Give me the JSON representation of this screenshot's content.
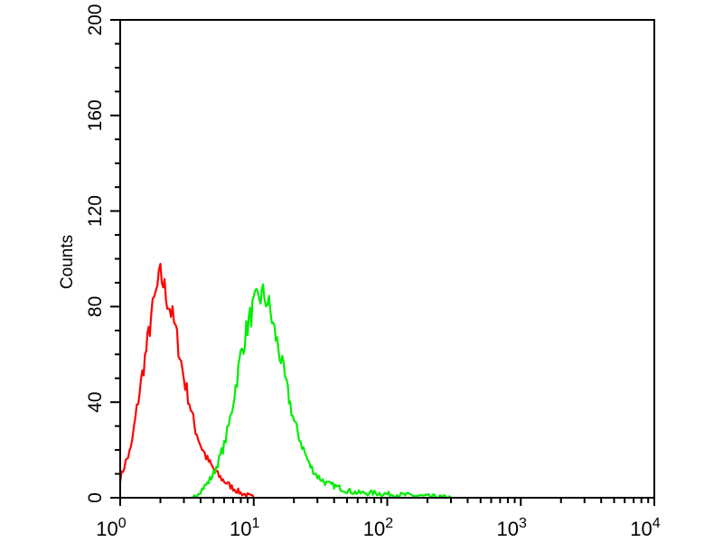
{
  "chart_data": {
    "type": "line",
    "title": "",
    "xlabel": "",
    "ylabel": "Counts",
    "xscale": "log",
    "xlim": [
      1,
      10000
    ],
    "ylim": [
      0,
      200
    ],
    "grid": false,
    "x_ticks": [
      {
        "base": "10",
        "exp": "0"
      },
      {
        "base": "10",
        "exp": "1"
      },
      {
        "base": "10",
        "exp": "2"
      },
      {
        "base": "10",
        "exp": "3"
      },
      {
        "base": "10",
        "exp": "4"
      }
    ],
    "y_ticks": [
      "0",
      "40",
      "80",
      "120",
      "160",
      "200"
    ],
    "series": [
      {
        "color": "#ff0000",
        "x": [
          1.0,
          1.1,
          1.2,
          1.3,
          1.4,
          1.5,
          1.6,
          1.7,
          1.8,
          1.9,
          2.0,
          2.1,
          2.2,
          2.4,
          2.6,
          2.8,
          3.0,
          3.3,
          3.6,
          4.0,
          4.5,
          5.0,
          5.5,
          6.0,
          7.0,
          8.0,
          9.0,
          10.0
        ],
        "y": [
          8,
          15,
          20,
          33,
          45,
          55,
          65,
          75,
          82,
          88,
          93,
          90,
          85,
          78,
          70,
          60,
          50,
          40,
          30,
          22,
          16,
          12,
          9,
          7,
          4,
          2,
          1,
          0
        ]
      },
      {
        "color": "#00ee00",
        "x": [
          3.5,
          4,
          4.5,
          5,
          5.5,
          6,
          6.5,
          7,
          7.5,
          8,
          9,
          10,
          11,
          12,
          13,
          14,
          16,
          18,
          20,
          23,
          26,
          30,
          35,
          40,
          50,
          60,
          80,
          100,
          150,
          200,
          300
        ],
        "y": [
          0,
          3,
          6,
          10,
          16,
          22,
          30,
          40,
          50,
          60,
          72,
          80,
          84,
          85,
          80,
          72,
          58,
          44,
          32,
          22,
          14,
          9,
          6,
          5,
          3,
          2,
          2,
          1.5,
          1,
          0.5,
          0
        ]
      }
    ]
  }
}
